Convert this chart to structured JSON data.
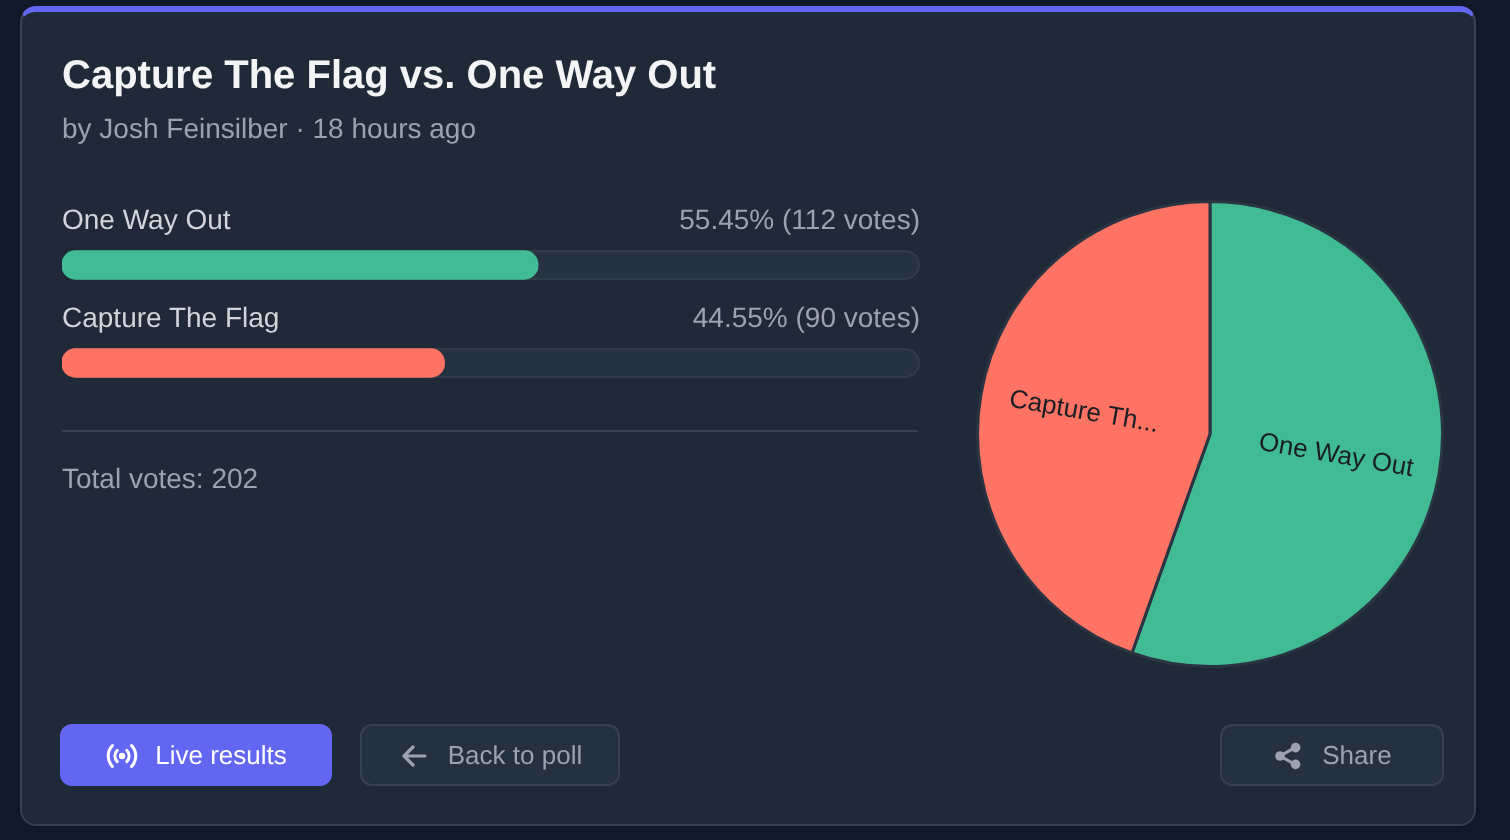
{
  "chart_data": [
    {
      "type": "bar",
      "orientation": "horizontal",
      "title": "Capture The Flag vs. One Way Out",
      "subtitle": "by Josh Feinsilber · 18 hours ago",
      "categories": [
        "One Way Out",
        "Capture The Flag"
      ],
      "values": [
        55.45,
        44.55
      ],
      "colors": [
        "#40bb93",
        "#fe7363"
      ],
      "value_labels": [
        "55.45% (112 votes)",
        "44.55% (90 votes)"
      ],
      "xlim": [
        0,
        100
      ],
      "tick_labels": "y",
      "annotations": [
        "Total votes: 202",
        "Live results",
        "Back to poll",
        "Share"
      ]
    },
    {
      "type": "pie",
      "categories": [
        "One Way Out",
        "Capture Th..."
      ],
      "values": [
        55.45,
        44.55
      ],
      "colors": [
        "#40bb93",
        "#fe7363"
      ]
    }
  ]
}
